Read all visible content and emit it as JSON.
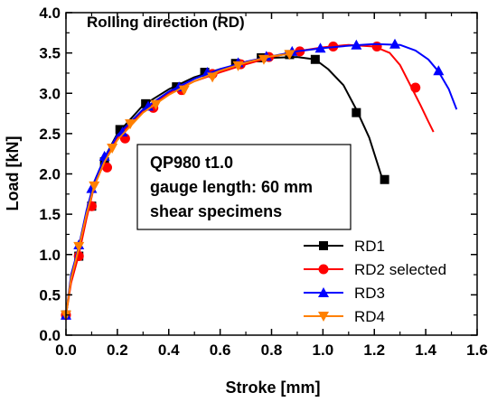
{
  "chart_data": {
    "type": "line",
    "title": "Rolling direction (RD)",
    "xlabel": "Stroke [mm]",
    "ylabel": "Load [kN]",
    "xlim": [
      0.0,
      1.6
    ],
    "ylim": [
      0.0,
      4.0
    ],
    "xticks": [
      "0.0",
      "0.2",
      "0.4",
      "0.6",
      "0.8",
      "1.0",
      "1.2",
      "1.4",
      "1.6"
    ],
    "yticks": [
      "0.0",
      "0.5",
      "1.0",
      "1.5",
      "2.0",
      "2.5",
      "3.0",
      "3.5",
      "4.0"
    ],
    "grid": false,
    "legend_position": "lower-right",
    "annotation": [
      "QP980 t1.0",
      "gauge length: 60 mm",
      "shear specimens"
    ],
    "series": [
      {
        "name": "RD1",
        "color": "#000000",
        "marker": "square",
        "x": [
          0.0,
          0.02,
          0.05,
          0.08,
          0.11,
          0.15,
          0.2,
          0.3,
          0.4,
          0.5,
          0.6,
          0.7,
          0.8,
          0.9,
          0.97,
          1.02,
          1.08,
          1.13,
          1.18,
          1.21,
          1.23,
          1.235
        ],
        "y": [
          0.25,
          0.7,
          1.05,
          1.5,
          1.9,
          2.2,
          2.5,
          2.85,
          3.05,
          3.2,
          3.3,
          3.38,
          3.44,
          3.45,
          3.42,
          3.3,
          3.1,
          2.8,
          2.45,
          2.15,
          1.95,
          1.93
        ],
        "marker_points": [
          [
            0.0,
            0.25
          ],
          [
            0.05,
            0.98
          ],
          [
            0.1,
            1.6
          ],
          [
            0.15,
            2.15
          ],
          [
            0.21,
            2.55
          ],
          [
            0.31,
            2.87
          ],
          [
            0.43,
            3.08
          ],
          [
            0.54,
            3.26
          ],
          [
            0.66,
            3.37
          ],
          [
            0.76,
            3.44
          ],
          [
            0.87,
            3.48
          ],
          [
            0.97,
            3.42
          ],
          [
            1.13,
            2.76
          ],
          [
            1.24,
            1.93
          ]
        ]
      },
      {
        "name": "RD2 selected",
        "color": "#ff0000",
        "marker": "circle",
        "x": [
          0.0,
          0.02,
          0.05,
          0.08,
          0.11,
          0.15,
          0.2,
          0.3,
          0.4,
          0.5,
          0.6,
          0.7,
          0.8,
          0.9,
          1.0,
          1.1,
          1.2,
          1.26,
          1.3,
          1.34,
          1.38,
          1.41,
          1.43
        ],
        "y": [
          0.25,
          0.65,
          1.0,
          1.45,
          1.85,
          2.15,
          2.45,
          2.78,
          3.0,
          3.15,
          3.26,
          3.36,
          3.45,
          3.52,
          3.57,
          3.6,
          3.58,
          3.5,
          3.35,
          3.1,
          2.85,
          2.65,
          2.52
        ],
        "marker_points": [
          [
            0.0,
            0.25
          ],
          [
            0.05,
            0.98
          ],
          [
            0.1,
            1.6
          ],
          [
            0.16,
            2.08
          ],
          [
            0.23,
            2.44
          ],
          [
            0.34,
            2.82
          ],
          [
            0.45,
            3.04
          ],
          [
            0.57,
            3.24
          ],
          [
            0.68,
            3.36
          ],
          [
            0.79,
            3.45
          ],
          [
            0.91,
            3.52
          ],
          [
            1.04,
            3.58
          ],
          [
            1.21,
            3.58
          ],
          [
            1.36,
            3.07
          ]
        ]
      },
      {
        "name": "RD3",
        "color": "#0000ff",
        "marker": "triangle-up",
        "x": [
          0.0,
          0.02,
          0.05,
          0.08,
          0.11,
          0.15,
          0.2,
          0.3,
          0.4,
          0.5,
          0.6,
          0.7,
          0.8,
          0.9,
          1.0,
          1.1,
          1.2,
          1.3,
          1.36,
          1.41,
          1.45,
          1.49,
          1.52
        ],
        "y": [
          0.25,
          0.75,
          1.1,
          1.55,
          1.9,
          2.2,
          2.48,
          2.8,
          3.02,
          3.18,
          3.3,
          3.39,
          3.46,
          3.52,
          3.56,
          3.59,
          3.61,
          3.6,
          3.53,
          3.42,
          3.27,
          3.05,
          2.8
        ],
        "marker_points": [
          [
            0.0,
            0.25
          ],
          [
            0.05,
            1.12
          ],
          [
            0.1,
            1.82
          ],
          [
            0.15,
            2.22
          ],
          [
            0.22,
            2.52
          ],
          [
            0.32,
            2.84
          ],
          [
            0.44,
            3.08
          ],
          [
            0.55,
            3.26
          ],
          [
            0.67,
            3.38
          ],
          [
            0.78,
            3.46
          ],
          [
            0.88,
            3.52
          ],
          [
            0.99,
            3.56
          ],
          [
            1.13,
            3.6
          ],
          [
            1.28,
            3.61
          ],
          [
            1.45,
            3.28
          ]
        ]
      },
      {
        "name": "RD4",
        "color": "#ff8000",
        "marker": "triangle-down",
        "x": [
          0.0,
          0.02,
          0.05,
          0.08,
          0.11,
          0.15,
          0.2,
          0.3,
          0.4,
          0.5,
          0.6,
          0.7,
          0.8,
          0.85,
          0.88
        ],
        "y": [
          0.25,
          0.7,
          1.08,
          1.5,
          1.85,
          2.15,
          2.42,
          2.76,
          2.98,
          3.15,
          3.28,
          3.38,
          3.46,
          3.48,
          3.48
        ],
        "marker_points": [
          [
            0.0,
            0.25
          ],
          [
            0.05,
            1.1
          ],
          [
            0.11,
            1.85
          ],
          [
            0.18,
            2.32
          ],
          [
            0.25,
            2.62
          ],
          [
            0.35,
            2.86
          ],
          [
            0.46,
            3.04
          ],
          [
            0.57,
            3.2
          ],
          [
            0.67,
            3.34
          ],
          [
            0.77,
            3.42
          ],
          [
            0.87,
            3.48
          ]
        ]
      }
    ]
  }
}
